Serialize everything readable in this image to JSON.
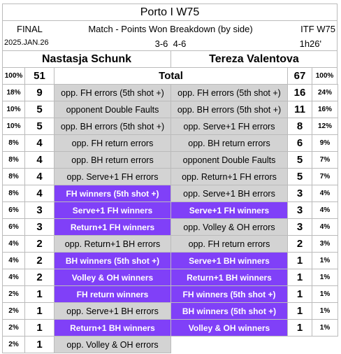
{
  "header": {
    "title": "Porto I W75",
    "status": "FINAL",
    "subtitle": "Match - Points Won Breakdown (by side)",
    "event": "ITF W75",
    "date": "2025.JAN.26",
    "score": "3-6  4-6",
    "duration": "1h26'"
  },
  "players": [
    "Nastasja Schunk",
    "Tereza Valentova"
  ],
  "total": {
    "left_pct": "100%",
    "left": 51,
    "label": "Total",
    "right": 67,
    "right_pct": "100%"
  },
  "left_rows": [
    {
      "pct": "18%",
      "value": 9,
      "label": "opp. FH errors (5th shot +)"
    },
    {
      "pct": "10%",
      "value": 5,
      "label": "opponent Double Faults"
    },
    {
      "pct": "10%",
      "value": 5,
      "label": "opp. BH errors (5th shot +)"
    },
    {
      "pct": "8%",
      "value": 4,
      "label": "opp. FH return errors"
    },
    {
      "pct": "8%",
      "value": 4,
      "label": "opp. BH return errors"
    },
    {
      "pct": "8%",
      "value": 4,
      "label": "opp. Serve+1 FH errors"
    },
    {
      "pct": "8%",
      "value": 4,
      "label": "FH winners (5th shot +)"
    },
    {
      "pct": "6%",
      "value": 3,
      "label": "Serve+1 FH winners"
    },
    {
      "pct": "6%",
      "value": 3,
      "label": "Return+1 FH winners"
    },
    {
      "pct": "4%",
      "value": 2,
      "label": "opp. Return+1 BH errors"
    },
    {
      "pct": "4%",
      "value": 2,
      "label": "BH winners (5th shot +)"
    },
    {
      "pct": "4%",
      "value": 2,
      "label": "Volley & OH winners"
    },
    {
      "pct": "2%",
      "value": 1,
      "label": "FH return winners"
    },
    {
      "pct": "2%",
      "value": 1,
      "label": "opp. Serve+1 BH errors"
    },
    {
      "pct": "2%",
      "value": 1,
      "label": "Return+1 BH winners"
    },
    {
      "pct": "2%",
      "value": 1,
      "label": "opp. Volley & OH errors"
    }
  ],
  "right_rows": [
    {
      "label": "opp. FH errors (5th shot +)",
      "value": 16,
      "pct": "24%"
    },
    {
      "label": "opp. BH errors (5th shot +)",
      "value": 11,
      "pct": "16%"
    },
    {
      "label": "opp. Serve+1 FH errors",
      "value": 8,
      "pct": "12%"
    },
    {
      "label": "opp. BH return errors",
      "value": 6,
      "pct": "9%"
    },
    {
      "label": "opponent Double Faults",
      "value": 5,
      "pct": "7%"
    },
    {
      "label": "opp. Return+1 FH errors",
      "value": 5,
      "pct": "7%"
    },
    {
      "label": "opp. Serve+1 BH errors",
      "value": 3,
      "pct": "4%"
    },
    {
      "label": "Serve+1 FH winners",
      "value": 3,
      "pct": "4%"
    },
    {
      "label": "opp. Volley & OH errors",
      "value": 3,
      "pct": "4%"
    },
    {
      "label": "opp. FH return errors",
      "value": 2,
      "pct": "3%"
    },
    {
      "label": "Serve+1 BH winners",
      "value": 1,
      "pct": "1%"
    },
    {
      "label": "Return+1 BH winners",
      "value": 1,
      "pct": "1%"
    },
    {
      "label": "FH winners (5th shot +)",
      "value": 1,
      "pct": "1%"
    },
    {
      "label": "BH winners (5th shot +)",
      "value": 1,
      "pct": "1%"
    },
    {
      "label": "Volley & OH winners",
      "value": 1,
      "pct": "1%"
    }
  ]
}
